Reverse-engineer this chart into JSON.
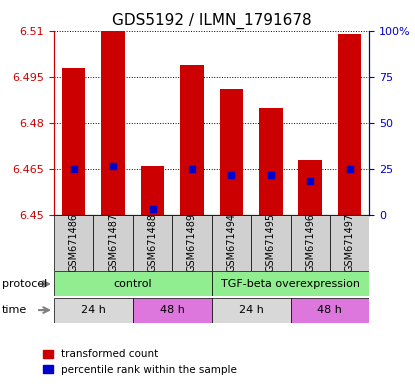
{
  "title": "GDS5192 / ILMN_1791678",
  "samples": [
    "GSM671486",
    "GSM671487",
    "GSM671488",
    "GSM671489",
    "GSM671494",
    "GSM671495",
    "GSM671496",
    "GSM671497"
  ],
  "bar_values": [
    6.498,
    6.511,
    6.466,
    6.499,
    6.491,
    6.485,
    6.468,
    6.509
  ],
  "bar_base": 6.45,
  "percentile_values": [
    6.465,
    6.466,
    6.452,
    6.465,
    6.463,
    6.463,
    6.461,
    6.465
  ],
  "ylim": [
    6.45,
    6.51
  ],
  "yticks_left": [
    6.45,
    6.465,
    6.48,
    6.495,
    6.51
  ],
  "yticks_right": [
    0,
    25,
    50,
    75,
    100
  ],
  "yticks_right_labels": [
    "0",
    "25",
    "50",
    "75",
    "100%"
  ],
  "bar_color": "#cc0000",
  "percentile_color": "#0000cc",
  "bar_width": 0.6,
  "legend_red": "transformed count",
  "legend_blue": "percentile rank within the sample",
  "title_fontsize": 11,
  "axis_label_color_left": "#cc0000",
  "axis_label_color_right": "#0000cc",
  "sample_box_color": "#d0d0d0",
  "proto_info": [
    [
      0,
      4,
      "control",
      "#90ee90"
    ],
    [
      4,
      8,
      "TGF-beta overexpression",
      "#90ee90"
    ]
  ],
  "time_info": [
    [
      0,
      2,
      "24 h",
      "#d8d8d8"
    ],
    [
      2,
      4,
      "48 h",
      "#dd77dd"
    ],
    [
      4,
      6,
      "24 h",
      "#d8d8d8"
    ],
    [
      6,
      8,
      "48 h",
      "#dd77dd"
    ]
  ]
}
